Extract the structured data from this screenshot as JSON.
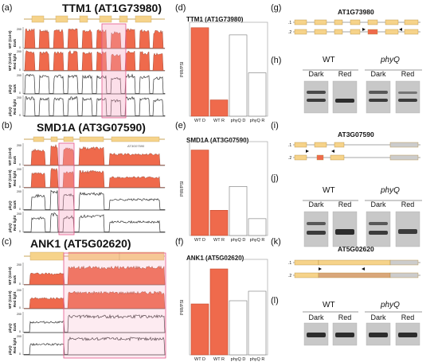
{
  "panels": {
    "a": {
      "letter": "(a)",
      "title": "TTM1 (AT1G73980)"
    },
    "b": {
      "letter": "(b)",
      "title": "SMD1A (AT3G07590)",
      "sub": "AT3G07590"
    },
    "c": {
      "letter": "(c)",
      "title": "ANK1 (AT5G02620)"
    },
    "d": {
      "letter": "(d)"
    },
    "e": {
      "letter": "(e)"
    },
    "f": {
      "letter": "(f)"
    },
    "g": {
      "letter": "(g)",
      "gene": "AT1G73980",
      "t1": ".1",
      "t2": ".2"
    },
    "h": {
      "letter": "(h)"
    },
    "i": {
      "letter": "(i)",
      "gene": "AT3G07590",
      "t1": ".1",
      "t2": ".2"
    },
    "j": {
      "letter": "(j)"
    },
    "k": {
      "letter": "(k)",
      "gene": "AT5G02620",
      "t1": ".1",
      "t2": ".2"
    },
    "l": {
      "letter": "(l)"
    }
  },
  "track_labels": {
    "wt_dark": [
      "WT (Col-0)",
      "Dark"
    ],
    "wt_red": [
      "WT (Col-0)",
      "Red light"
    ],
    "phyq_dark": [
      "phyQ",
      "Dark"
    ],
    "phyq_red": [
      "phyQ",
      "Red light"
    ]
  },
  "axis_ticks": [
    "200",
    "100",
    "0"
  ],
  "gel": {
    "wt": "WT",
    "phyq": "phyQ",
    "lanes": [
      "Dark",
      "Red",
      "Dark",
      "Red"
    ]
  },
  "colors": {
    "wt_fill": "#ef6a4c",
    "exon": "#f6d38a",
    "highlight": "#f7a3c0"
  },
  "chart_data": [
    {
      "type": "bar",
      "title": "TTM1 (AT1G73980)",
      "ylabel": "PIR/PSI",
      "categories": [
        "WT D",
        "WT R",
        "phyQ D",
        "phyQ R"
      ],
      "values": [
        0.49,
        0.09,
        0.45,
        0.24
      ],
      "ylim": [
        0,
        0.52
      ]
    },
    {
      "type": "bar",
      "title": "SMD1A (AT3G07590)",
      "ylabel": "PIR/PSI",
      "categories": [
        "WT D",
        "WT R",
        "phyQ D",
        "phyQ R"
      ],
      "values": [
        0.61,
        0.18,
        0.35,
        0.12
      ],
      "ylim": [
        0,
        0.67
      ]
    },
    {
      "type": "bar",
      "title": "ANK1 (AT5G02620)",
      "ylabel": "PIR/PSI",
      "categories": [
        "WT D",
        "WT R",
        "phyQ D",
        "phyQ R"
      ],
      "values": [
        0.16,
        0.27,
        0.17,
        0.2
      ],
      "ylim": [
        0,
        0.3
      ]
    }
  ]
}
